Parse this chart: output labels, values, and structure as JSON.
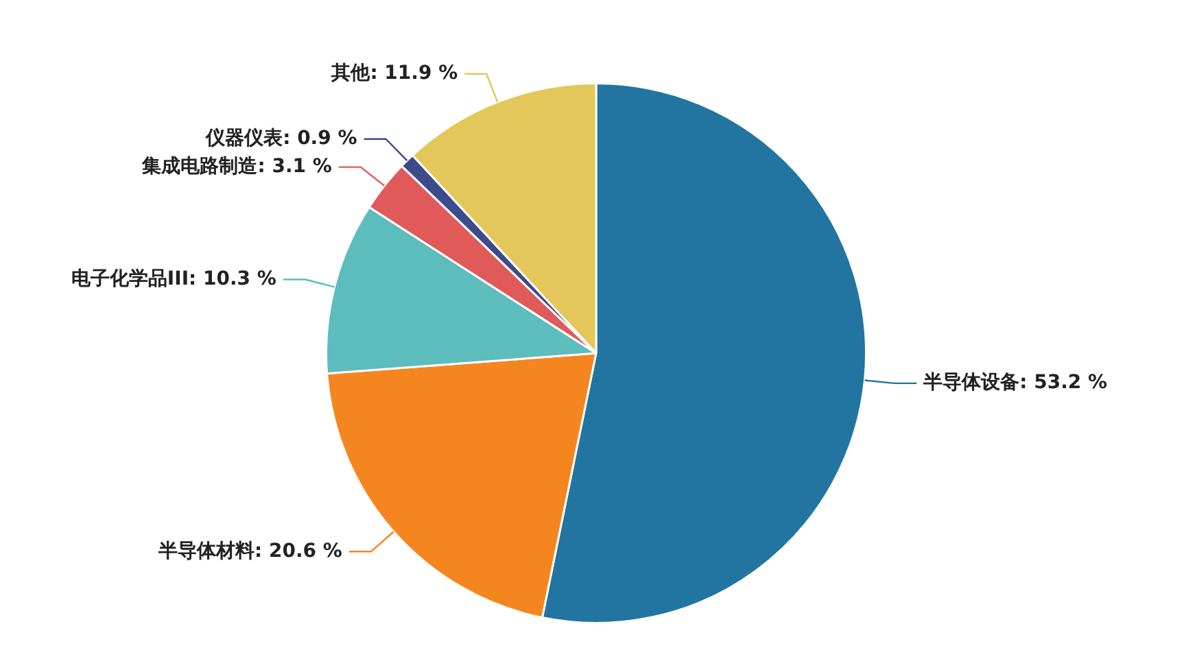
{
  "chart_data": {
    "type": "pie",
    "categories": [
      "半导体设备",
      "半导体材料",
      "电子化学品III",
      "集成电路制造",
      "仪器仪表",
      "其他"
    ],
    "values": [
      53.2,
      20.6,
      10.3,
      3.1,
      0.9,
      11.9
    ],
    "value_labels": [
      "53.2 %",
      "20.6 %",
      "10.3 %",
      "3.1 %",
      "0.9 %",
      "11.9 %"
    ],
    "colors": [
      "#2275a0",
      "#f5861f",
      "#5dbdbd",
      "#e05a5a",
      "#3c4c8a",
      "#e3c75a"
    ],
    "legend": false
  }
}
